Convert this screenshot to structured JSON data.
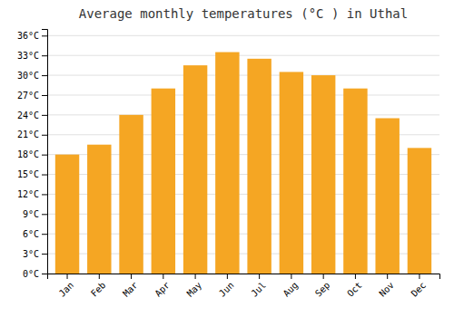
{
  "chart_data": {
    "type": "bar",
    "title": "Average monthly temperatures (°C ) in Uthal",
    "categories": [
      "Jan",
      "Feb",
      "Mar",
      "Apr",
      "May",
      "Jun",
      "Jul",
      "Aug",
      "Sep",
      "Oct",
      "Nov",
      "Dec"
    ],
    "values": [
      18,
      19.5,
      24,
      28,
      31.5,
      33.5,
      32.5,
      30.5,
      30,
      28,
      23.5,
      19
    ],
    "color": "#F5A623",
    "ylim": [
      0,
      37
    ],
    "yticks": [
      {
        "value": 0,
        "label": "0°C"
      },
      {
        "value": 3,
        "label": "3°C"
      },
      {
        "value": 6,
        "label": "6°C"
      },
      {
        "value": 9,
        "label": "9°C"
      },
      {
        "value": 12,
        "label": "12°C"
      },
      {
        "value": 15,
        "label": "15°C"
      },
      {
        "value": 18,
        "label": "18°C"
      },
      {
        "value": 21,
        "label": "21°C"
      },
      {
        "value": 24,
        "label": "24°C"
      },
      {
        "value": 27,
        "label": "27°C"
      },
      {
        "value": 30,
        "label": "30°C"
      },
      {
        "value": 33,
        "label": "33°C"
      },
      {
        "value": 36,
        "label": "36°C"
      }
    ],
    "grid": true
  }
}
